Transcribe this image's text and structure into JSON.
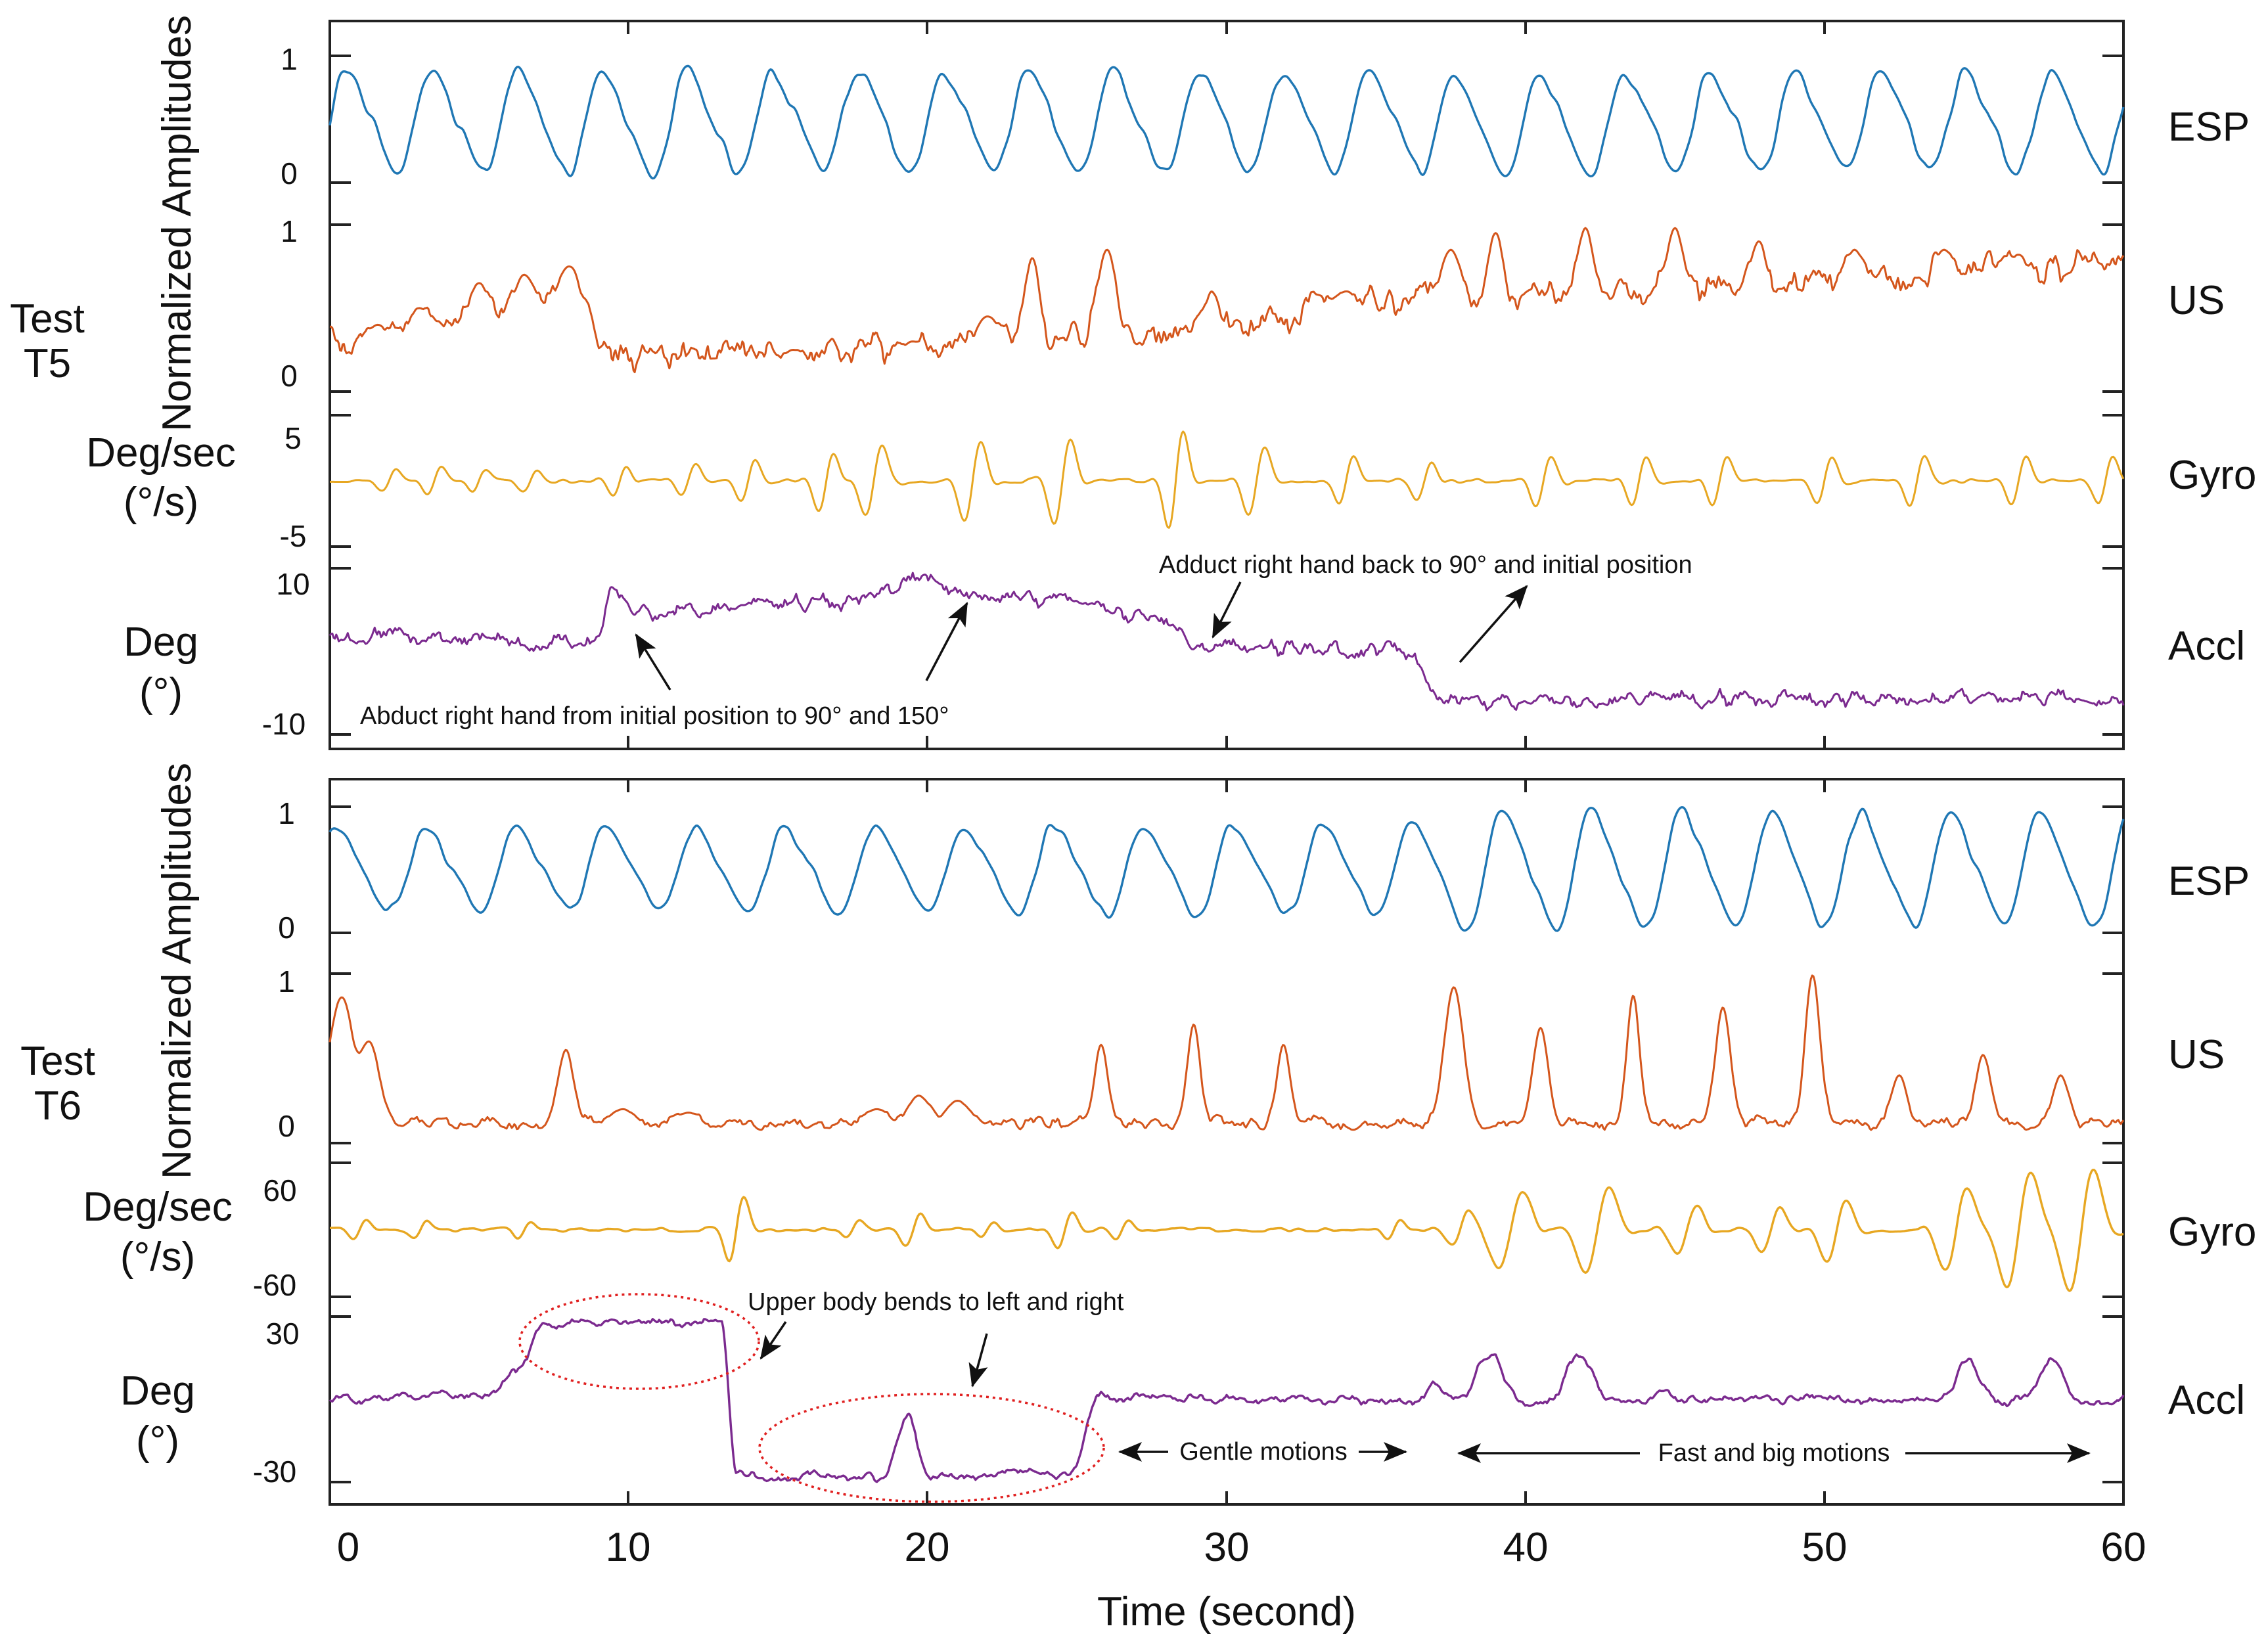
{
  "chart_data": {
    "type": "line",
    "x_label": "Time (second)",
    "x_ticks": [
      "0",
      "10",
      "20",
      "30",
      "40",
      "50",
      "60"
    ],
    "x_range": [
      0,
      60
    ],
    "panels": [
      {
        "id": "T5",
        "test_label": [
          "Test",
          "T5"
        ],
        "y_group_label": "Normalized Amplitudes",
        "series": [
          {
            "name": "ESP",
            "color": "#1f77b4",
            "y_ticks": [
              "1",
              "0"
            ],
            "ylim": [
              0,
              1
            ],
            "unit_label": [],
            "shape": {
              "kind": "osc",
              "base": 0.48,
              "amps": [
                [
                  0,
                  0.38
                ],
                [
                  60,
                  0.36
                ]
              ],
              "period": 2.85,
              "phase": 0.0,
              "noise": 0.05,
              "seed": 3
            }
          },
          {
            "name": "US",
            "color": "#d4561c",
            "y_ticks": [
              "1",
              "0"
            ],
            "ylim": [
              0,
              1
            ],
            "unit_label": [],
            "shape": {
              "kind": "bursty",
              "base": [
                [
                  0,
                  0.3
                ],
                [
                  8,
                  0.55
                ],
                [
                  10,
                  0.2
                ],
                [
                  26,
                  0.3
                ],
                [
                  36,
                  0.55
                ],
                [
                  60,
                  0.75
                ]
              ],
              "seed": 11,
              "peaks": [
                [
                  1.6,
                  0.4,
                  0.45
                ],
                [
                  3,
                  0.5,
                  0.4
                ],
                [
                  5,
                  0.65,
                  0.4
                ],
                [
                  6.5,
                  0.7,
                  0.4
                ],
                [
                  8,
                  0.75,
                  0.45
                ],
                [
                  13,
                  0.2,
                  0.5
                ],
                [
                  15.5,
                  0.25,
                  0.5
                ],
                [
                  19.5,
                  0.3,
                  0.5
                ],
                [
                  22,
                  0.45,
                  0.6
                ],
                [
                  23.5,
                  0.8,
                  0.35
                ],
                [
                  26,
                  0.85,
                  0.45
                ],
                [
                  29.5,
                  0.6,
                  0.35
                ],
                [
                  34,
                  0.6,
                  0.5
                ],
                [
                  37.5,
                  0.85,
                  0.45
                ],
                [
                  39,
                  0.95,
                  0.35
                ],
                [
                  42,
                  0.98,
                  0.35
                ],
                [
                  45,
                  0.98,
                  0.35
                ],
                [
                  47.8,
                  0.9,
                  0.35
                ],
                [
                  51,
                  0.85,
                  0.35
                ],
                [
                  54,
                  0.85,
                  0.35
                ],
                [
                  56.5,
                  0.82,
                  0.35
                ],
                [
                  59,
                  0.78,
                  0.35
                ]
              ],
              "wiggle": 0.08
            }
          },
          {
            "name": "Gyro",
            "color": "#e7a722",
            "y_ticks": [
              "5",
              "-5"
            ],
            "ylim": [
              -5,
              5
            ],
            "unit_label": [
              "Deg/sec",
              "(°/s)"
            ],
            "shape": {
              "kind": "gyro",
              "seed": 21,
              "events": [
                [
                  2,
                  1.2,
                  0.5
                ],
                [
                  3.5,
                  1.5,
                  0.5
                ],
                [
                  5,
                  1.0,
                  0.5
                ],
                [
                  6.7,
                  1.0,
                  0.5
                ],
                [
                  9.7,
                  1.5,
                  0.45
                ],
                [
                  12,
                  1.6,
                  0.5
                ],
                [
                  14,
                  2.2,
                  0.5
                ],
                [
                  16.6,
                  3.0,
                  0.5
                ],
                [
                  18.2,
                  3.6,
                  0.55
                ],
                [
                  21.5,
                  4.1,
                  0.55
                ],
                [
                  24.5,
                  4.4,
                  0.55
                ],
                [
                  28.3,
                  5.0,
                  0.5
                ],
                [
                  31,
                  3.5,
                  0.55
                ],
                [
                  34,
                  2.5,
                  0.5
                ],
                [
                  36.6,
                  1.8,
                  0.5
                ],
                [
                  40.6,
                  2.6,
                  0.5
                ],
                [
                  43.8,
                  2.6,
                  0.5
                ],
                [
                  46.5,
                  2.4,
                  0.5
                ],
                [
                  50,
                  2.3,
                  0.5
                ],
                [
                  53.1,
                  2.5,
                  0.5
                ],
                [
                  56.5,
                  2.6,
                  0.5
                ],
                [
                  59.4,
                  2.5,
                  0.5
                ]
              ]
            }
          },
          {
            "name": "Accl",
            "color": "#7b2a8f",
            "y_ticks": [
              "10",
              "-10"
            ],
            "ylim": [
              -10,
              10
            ],
            "unit_label": [
              "Deg",
              "(°)"
            ],
            "shape": {
              "kind": "steps",
              "seed": 31,
              "levels": [
                [
                  0,
                  2.0
                ],
                [
                  9.0,
                  1.0
                ],
                [
                  9.4,
                  7.5
                ],
                [
                  10.2,
                  4.5
                ],
                [
                  17,
                  6.0
                ],
                [
                  20,
                  8.5
                ],
                [
                  22,
                  7.0
                ],
                [
                  28,
                  4.0
                ],
                [
                  29.2,
                  0.5
                ],
                [
                  36,
                  0.3
                ],
                [
                  37.4,
                  -6.0
                ],
                [
                  60,
                  -5.5
                ]
              ],
              "wiggle": 0.9
            }
          }
        ],
        "annotations": [
          {
            "text": "Abduct right hand from initial position to 90° and 150°"
          },
          {
            "text": "Adduct right hand back to 90° and initial position"
          }
        ]
      },
      {
        "id": "T6",
        "test_label": [
          "Test",
          "T6"
        ],
        "y_group_label": "Normalized Amplitudes",
        "series": [
          {
            "name": "ESP",
            "color": "#1f77b4",
            "y_ticks": [
              "1",
              "0"
            ],
            "ylim": [
              0,
              1
            ],
            "unit_label": [],
            "shape": {
              "kind": "osc",
              "base": 0.5,
              "amps": [
                [
                  0,
                  0.3
                ],
                [
                  36,
                  0.34
                ],
                [
                  38,
                  0.45
                ],
                [
                  60,
                  0.42
                ]
              ],
              "period": 3.0,
              "phase": 0.8,
              "noise": 0.04,
              "seed": 5
            }
          },
          {
            "name": "US",
            "color": "#d4561c",
            "y_ticks": [
              "1",
              "0"
            ],
            "ylim": [
              0,
              1
            ],
            "unit_label": [],
            "shape": {
              "kind": "bursty",
              "base": [
                [
                  0,
                  0.12
                ],
                [
                  60,
                  0.12
                ]
              ],
              "seed": 13,
              "peaks": [
                [
                  0.4,
                  0.86,
                  0.6
                ],
                [
                  1.3,
                  0.6,
                  0.5
                ],
                [
                  7.9,
                  0.55,
                  0.35
                ],
                [
                  9.8,
                  0.2,
                  0.5
                ],
                [
                  12,
                  0.18,
                  0.5
                ],
                [
                  18.3,
                  0.2,
                  0.5
                ],
                [
                  19.7,
                  0.28,
                  0.5
                ],
                [
                  21,
                  0.25,
                  0.5
                ],
                [
                  25.8,
                  0.58,
                  0.3
                ],
                [
                  28.9,
                  0.7,
                  0.3
                ],
                [
                  31.9,
                  0.58,
                  0.3
                ],
                [
                  37.6,
                  0.92,
                  0.45
                ],
                [
                  40.5,
                  0.68,
                  0.35
                ],
                [
                  43.6,
                  0.87,
                  0.3
                ],
                [
                  46.6,
                  0.8,
                  0.35
                ],
                [
                  49.6,
                  0.99,
                  0.35
                ],
                [
                  52.5,
                  0.4,
                  0.35
                ],
                [
                  55.3,
                  0.52,
                  0.35
                ],
                [
                  57.9,
                  0.4,
                  0.35
                ]
              ],
              "wiggle": 0.03
            }
          },
          {
            "name": "Gyro",
            "color": "#e7a722",
            "y_ticks": [
              "60",
              "-60"
            ],
            "ylim": [
              -60,
              60
            ],
            "unit_label": [
              "Deg/sec",
              "(°/s)"
            ],
            "shape": {
              "kind": "gyro",
              "seed": 23,
              "events": [
                [
                  1,
                  12,
                  0.45
                ],
                [
                  3,
                  10,
                  0.45
                ],
                [
                  6.5,
                  10,
                  0.45
                ],
                [
                  13.6,
                  40,
                  0.5
                ],
                [
                  17.5,
                  10,
                  0.45
                ],
                [
                  19.5,
                  18,
                  0.5
                ],
                [
                  22,
                  10,
                  0.45
                ],
                [
                  24.6,
                  22,
                  0.5
                ],
                [
                  26.5,
                  12,
                  0.45
                ],
                [
                  35.6,
                  12,
                  0.45
                ],
                [
                  37.8,
                  20,
                  0.55
                ],
                [
                  39.5,
                  48,
                  0.8
                ],
                [
                  42.4,
                  52,
                  0.8
                ],
                [
                  45.4,
                  30,
                  0.65
                ],
                [
                  48.2,
                  28,
                  0.6
                ],
                [
                  50.4,
                  38,
                  0.65
                ],
                [
                  54.4,
                  50,
                  0.75
                ],
                [
                  56.5,
                  70,
                  0.8
                ],
                [
                  58.6,
                  72,
                  0.8
                ]
              ]
            }
          },
          {
            "name": "Accl",
            "color": "#7b2a8f",
            "y_ticks": [
              "30",
              "-30"
            ],
            "ylim": [
              -30,
              30
            ],
            "unit_label": [
              "Deg",
              "(°)"
            ],
            "shape": {
              "kind": "steps",
              "seed": 33,
              "levels": [
                [
                  0,
                  0
                ],
                [
                  5.5,
                  2
                ],
                [
                  6.2,
                  10
                ],
                [
                  7.2,
                  27
                ],
                [
                  13.1,
                  28
                ],
                [
                  13.6,
                  -26
                ],
                [
                  14.0,
                  -28
                ],
                [
                  24.8,
                  -27
                ],
                [
                  25.7,
                  1
                ],
                [
                  26.3,
                  0
                ],
                [
                  60,
                  0
                ]
              ],
              "osc": [
                [
                  19.3,
                  22,
                  0.55
                ],
                [
                  37,
                  5,
                  0.5
                ],
                [
                  38.8,
                  16,
                  0.8
                ],
                [
                  41.8,
                  15,
                  0.8
                ],
                [
                  44.6,
                  4,
                  0.5
                ],
                [
                  54.8,
                  14,
                  0.7
                ],
                [
                  57.6,
                  14,
                  0.7
                ]
              ],
              "wiggle": 1.5
            }
          }
        ],
        "annotations": [
          {
            "text": "Upper body bends to left and right"
          },
          {
            "text": "Gentle motions"
          },
          {
            "text": "Fast and big motions"
          }
        ]
      }
    ]
  }
}
